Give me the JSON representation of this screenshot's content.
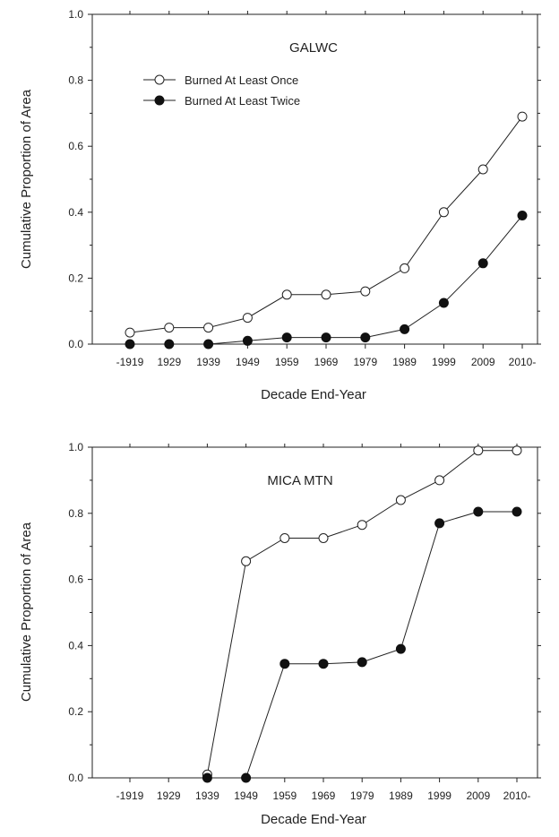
{
  "chart_data": [
    {
      "type": "line",
      "title": "GALWC",
      "xlabel": "Decade End-Year",
      "ylabel": "Cumulative Proportion of Area",
      "categories": [
        "-1919",
        "1929",
        "1939",
        "1949",
        "1959",
        "1969",
        "1979",
        "1989",
        "1999",
        "2009",
        "2010-"
      ],
      "ylim": [
        0,
        1.0
      ],
      "yticks": [
        "0.0",
        "0.2",
        "0.4",
        "0.6",
        "0.8",
        "1.0"
      ],
      "legend_position": "top-left",
      "series": [
        {
          "name": "Burned At Least Once",
          "marker": "open-circle",
          "values": [
            0.035,
            0.05,
            0.05,
            0.08,
            0.15,
            0.15,
            0.16,
            0.23,
            0.4,
            0.53,
            0.69
          ]
        },
        {
          "name": "Burned At Least Twice",
          "marker": "filled-circle",
          "values": [
            0.0,
            0.0,
            0.0,
            0.01,
            0.02,
            0.02,
            0.02,
            0.045,
            0.125,
            0.245,
            0.39
          ]
        }
      ]
    },
    {
      "type": "line",
      "title": "MICA MTN",
      "xlabel": "Decade End-Year",
      "ylabel": "Cumulative Proportion of Area",
      "categories": [
        "-1919",
        "1929",
        "1939",
        "1949",
        "1959",
        "1969",
        "1979",
        "1989",
        "1999",
        "2009",
        "2010-"
      ],
      "ylim": [
        0,
        1.0
      ],
      "yticks": [
        "0.0",
        "0.2",
        "0.4",
        "0.6",
        "0.8",
        "1.0"
      ],
      "series": [
        {
          "name": "Burned At Least Once",
          "marker": "open-circle",
          "values": [
            null,
            null,
            0.01,
            0.655,
            0.725,
            0.725,
            0.765,
            0.84,
            0.9,
            0.99,
            0.99
          ]
        },
        {
          "name": "Burned At Least Twice",
          "marker": "filled-circle",
          "values": [
            null,
            null,
            0.0,
            0.0,
            0.345,
            0.345,
            0.35,
            0.39,
            0.77,
            0.805,
            0.805
          ]
        }
      ]
    }
  ]
}
